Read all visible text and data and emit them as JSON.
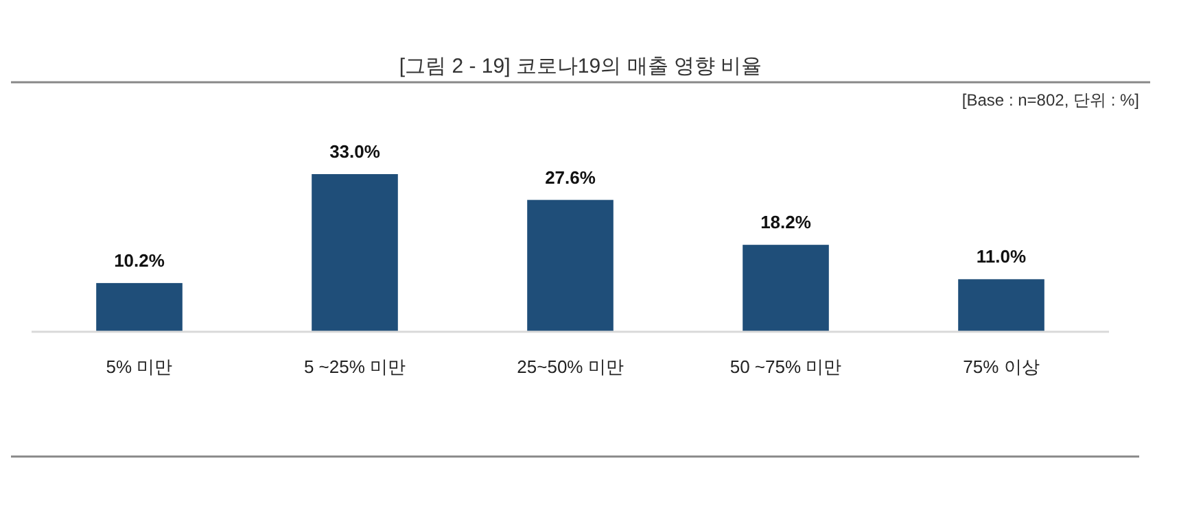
{
  "chart_data": {
    "type": "bar",
    "title": "[그림 2 - 19] 코로나19의 매출 영향 비율",
    "subtitle": "[Base : n=802, 단위 : %]",
    "categories": [
      "5% 미만",
      "5 ~25% 미만",
      "25~50% 미만",
      "50 ~75% 미만",
      "75% 이상"
    ],
    "values": [
      10.2,
      33.0,
      27.6,
      18.2,
      11.0
    ],
    "value_labels": [
      "10.2%",
      "33.0%",
      "27.6%",
      "18.2%",
      "11.0%"
    ],
    "color": "#1f4e79",
    "grid": false
  }
}
